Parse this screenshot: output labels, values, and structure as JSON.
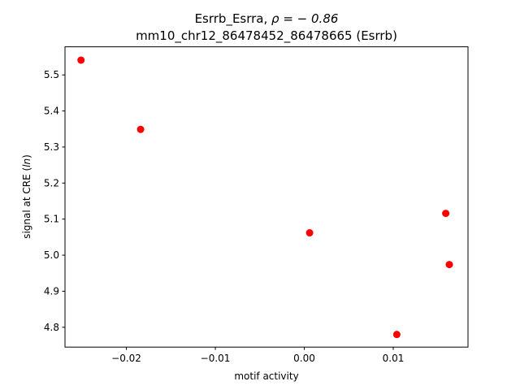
{
  "chart_data": {
    "type": "scatter",
    "title_line1_prefix": "Esrrb_Esrra, ",
    "title_line1_rho": "ρ = − 0.86",
    "title_line2": "mm10_chr12_86478452_86478665 (Esrrb)",
    "xlabel": "motif activity",
    "ylabel_prefix": "signal at CRE (",
    "ylabel_italic": "ln",
    "ylabel_suffix": ")",
    "xlim": [
      -0.0269,
      0.0184
    ],
    "ylim": [
      4.745,
      5.578
    ],
    "xticks": [
      -0.02,
      -0.01,
      0.0,
      0.01
    ],
    "xtick_labels": [
      "−0.02",
      "−0.01",
      "0.00",
      "0.01"
    ],
    "yticks": [
      4.8,
      4.9,
      5.0,
      5.1,
      5.2,
      5.3,
      5.4,
      5.5
    ],
    "ytick_labels": [
      "4.8",
      "4.9",
      "5.0",
      "5.1",
      "5.2",
      "5.3",
      "5.4",
      "5.5"
    ],
    "grid": false,
    "marker_color": "#ff0000",
    "points": [
      {
        "x": -0.0251,
        "y": 5.541
      },
      {
        "x": -0.0184,
        "y": 5.349
      },
      {
        "x": 0.0006,
        "y": 5.062
      },
      {
        "x": 0.0104,
        "y": 4.78
      },
      {
        "x": 0.0159,
        "y": 5.116
      },
      {
        "x": 0.0163,
        "y": 4.974
      }
    ]
  }
}
